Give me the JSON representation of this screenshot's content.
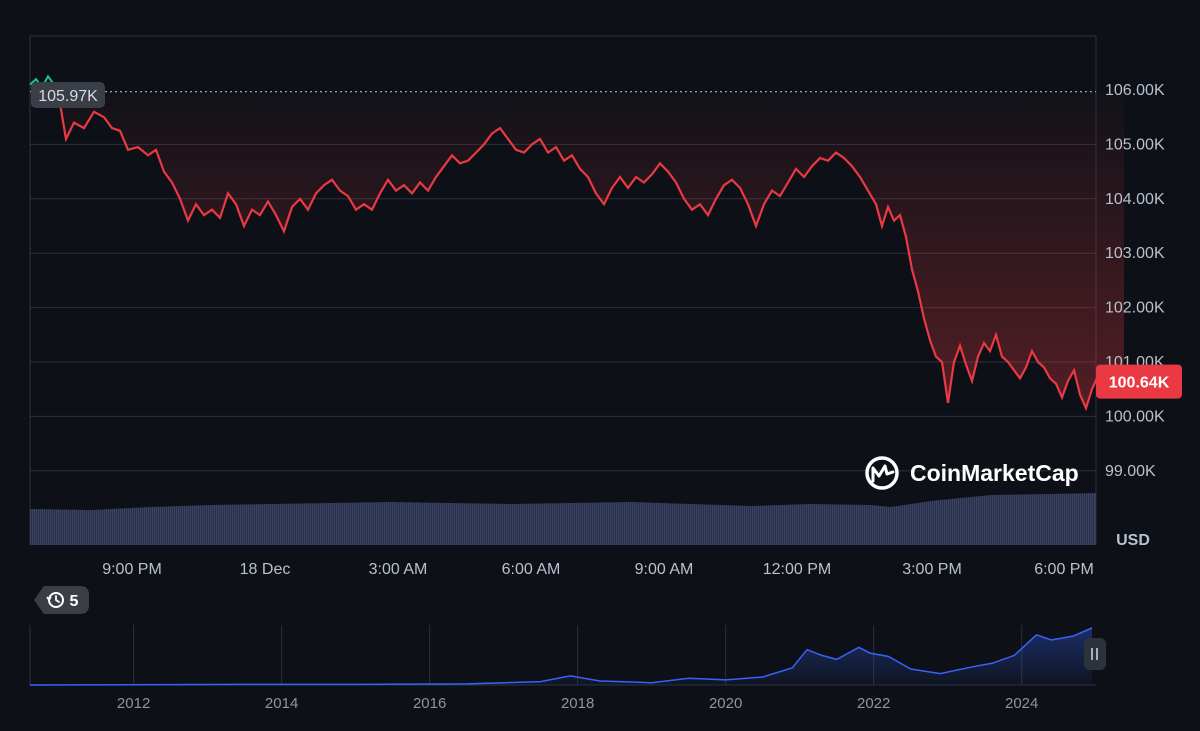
{
  "colors": {
    "background": "#0d1117",
    "grid": "#2a313c",
    "down_line": "#ea3943",
    "up_line": "#16c784",
    "volume": "#3a4465",
    "navigator_line": "#3861fb",
    "badge": "#ea3943",
    "open_badge": "#3a3f47"
  },
  "chart_data": [
    {
      "type": "line",
      "y_ticks": [
        "106.00K",
        "105.00K",
        "104.00K",
        "103.00K",
        "102.00K",
        "101.00K",
        "100.00K",
        "99.00K"
      ],
      "y_values": [
        106000,
        105000,
        104000,
        103000,
        102000,
        101000,
        100000,
        99000
      ],
      "ylim": [
        98500,
        107000
      ],
      "y_unit": "USD",
      "x_ticks": [
        "9:00 PM",
        "18 Dec",
        "3:00 AM",
        "6:00 AM",
        "9:00 AM",
        "12:00 PM",
        "3:00 PM",
        "6:00 PM"
      ],
      "open_price": 105970,
      "open_label": "105.97K",
      "current_price": 100640,
      "current_label": "100.64K",
      "grid": true,
      "series_up": [
        [
          0,
          106100
        ],
        [
          6,
          106200
        ],
        [
          12,
          106050
        ],
        [
          18,
          106250
        ],
        [
          24,
          106100
        ],
        [
          28,
          105970
        ]
      ],
      "series": [
        [
          28,
          105970
        ],
        [
          36,
          105100
        ],
        [
          44,
          105400
        ],
        [
          54,
          105300
        ],
        [
          64,
          105600
        ],
        [
          74,
          105500
        ],
        [
          82,
          105300
        ],
        [
          90,
          105250
        ],
        [
          98,
          104900
        ],
        [
          108,
          104950
        ],
        [
          118,
          104800
        ],
        [
          126,
          104900
        ],
        [
          134,
          104500
        ],
        [
          142,
          104300
        ],
        [
          150,
          104000
        ],
        [
          158,
          103600
        ],
        [
          166,
          103900
        ],
        [
          174,
          103700
        ],
        [
          182,
          103800
        ],
        [
          190,
          103650
        ],
        [
          198,
          104100
        ],
        [
          206,
          103900
        ],
        [
          214,
          103500
        ],
        [
          222,
          103800
        ],
        [
          230,
          103700
        ],
        [
          238,
          103950
        ],
        [
          246,
          103700
        ],
        [
          254,
          103400
        ],
        [
          262,
          103850
        ],
        [
          270,
          104000
        ],
        [
          278,
          103800
        ],
        [
          286,
          104100
        ],
        [
          294,
          104250
        ],
        [
          302,
          104350
        ],
        [
          310,
          104150
        ],
        [
          318,
          104050
        ],
        [
          326,
          103800
        ],
        [
          334,
          103900
        ],
        [
          342,
          103800
        ],
        [
          350,
          104100
        ],
        [
          358,
          104350
        ],
        [
          366,
          104150
        ],
        [
          374,
          104250
        ],
        [
          382,
          104100
        ],
        [
          390,
          104300
        ],
        [
          398,
          104150
        ],
        [
          406,
          104400
        ],
        [
          414,
          104600
        ],
        [
          422,
          104800
        ],
        [
          430,
          104650
        ],
        [
          438,
          104700
        ],
        [
          446,
          104850
        ],
        [
          454,
          105000
        ],
        [
          462,
          105200
        ],
        [
          470,
          105300
        ],
        [
          478,
          105100
        ],
        [
          486,
          104900
        ],
        [
          494,
          104850
        ],
        [
          502,
          105000
        ],
        [
          510,
          105100
        ],
        [
          518,
          104850
        ],
        [
          526,
          104950
        ],
        [
          534,
          104700
        ],
        [
          542,
          104800
        ],
        [
          550,
          104550
        ],
        [
          558,
          104400
        ],
        [
          566,
          104100
        ],
        [
          574,
          103900
        ],
        [
          582,
          104200
        ],
        [
          590,
          104400
        ],
        [
          598,
          104200
        ],
        [
          606,
          104400
        ],
        [
          614,
          104300
        ],
        [
          622,
          104450
        ],
        [
          630,
          104650
        ],
        [
          638,
          104500
        ],
        [
          646,
          104300
        ],
        [
          654,
          104000
        ],
        [
          662,
          103800
        ],
        [
          670,
          103900
        ],
        [
          678,
          103700
        ],
        [
          686,
          104000
        ],
        [
          694,
          104250
        ],
        [
          702,
          104350
        ],
        [
          710,
          104200
        ],
        [
          718,
          103900
        ],
        [
          726,
          103500
        ],
        [
          734,
          103900
        ],
        [
          742,
          104150
        ],
        [
          750,
          104050
        ],
        [
          758,
          104300
        ],
        [
          766,
          104550
        ],
        [
          774,
          104400
        ],
        [
          782,
          104600
        ],
        [
          790,
          104750
        ],
        [
          798,
          104700
        ],
        [
          806,
          104850
        ],
        [
          814,
          104750
        ],
        [
          822,
          104600
        ],
        [
          830,
          104400
        ],
        [
          838,
          104150
        ],
        [
          846,
          103900
        ],
        [
          852,
          103500
        ],
        [
          858,
          103850
        ],
        [
          864,
          103600
        ],
        [
          870,
          103700
        ],
        [
          876,
          103300
        ],
        [
          882,
          102700
        ],
        [
          888,
          102300
        ],
        [
          894,
          101800
        ],
        [
          900,
          101400
        ],
        [
          906,
          101100
        ],
        [
          912,
          101000
        ],
        [
          918,
          100250
        ],
        [
          924,
          101000
        ],
        [
          930,
          101300
        ],
        [
          936,
          100950
        ],
        [
          942,
          100650
        ],
        [
          948,
          101100
        ],
        [
          954,
          101350
        ],
        [
          960,
          101200
        ],
        [
          966,
          101500
        ],
        [
          972,
          101100
        ],
        [
          978,
          101000
        ],
        [
          984,
          100850
        ],
        [
          990,
          100700
        ],
        [
          996,
          100900
        ],
        [
          1002,
          101200
        ],
        [
          1008,
          101000
        ],
        [
          1014,
          100900
        ],
        [
          1020,
          100700
        ],
        [
          1026,
          100600
        ],
        [
          1032,
          100350
        ],
        [
          1038,
          100650
        ],
        [
          1044,
          100850
        ],
        [
          1050,
          100400
        ],
        [
          1056,
          100150
        ],
        [
          1062,
          100500
        ],
        [
          1068,
          100750
        ],
        [
          1074,
          100700
        ],
        [
          1080,
          100850
        ],
        [
          1086,
          100950
        ],
        [
          1094,
          100640
        ]
      ],
      "volume_profile": [
        [
          0,
          0.18
        ],
        [
          60,
          0.175
        ],
        [
          120,
          0.19
        ],
        [
          180,
          0.2
        ],
        [
          240,
          0.205
        ],
        [
          300,
          0.21
        ],
        [
          360,
          0.215
        ],
        [
          420,
          0.21
        ],
        [
          480,
          0.205
        ],
        [
          540,
          0.21
        ],
        [
          600,
          0.215
        ],
        [
          660,
          0.205
        ],
        [
          720,
          0.195
        ],
        [
          780,
          0.205
        ],
        [
          840,
          0.2
        ],
        [
          860,
          0.19
        ],
        [
          900,
          0.22
        ],
        [
          960,
          0.25
        ],
        [
          1020,
          0.255
        ],
        [
          1066,
          0.26
        ],
        [
          1094,
          0.28
        ]
      ]
    },
    {
      "type": "area",
      "x_ticks": [
        "2012",
        "2014",
        "2016",
        "2018",
        "2020",
        "2022",
        "2024"
      ],
      "x_tick_years": [
        2012,
        2014,
        2016,
        2018,
        2020,
        2022,
        2024
      ],
      "xlim": [
        2010.6,
        2024.95
      ],
      "series": [
        [
          2010.6,
          0.0
        ],
        [
          2013.5,
          0.01
        ],
        [
          2015.0,
          0.01
        ],
        [
          2016.5,
          0.02
        ],
        [
          2017.5,
          0.06
        ],
        [
          2017.9,
          0.16
        ],
        [
          2018.3,
          0.07
        ],
        [
          2019.0,
          0.04
        ],
        [
          2019.5,
          0.12
        ],
        [
          2020.0,
          0.09
        ],
        [
          2020.5,
          0.14
        ],
        [
          2020.9,
          0.3
        ],
        [
          2021.1,
          0.62
        ],
        [
          2021.3,
          0.52
        ],
        [
          2021.5,
          0.45
        ],
        [
          2021.8,
          0.66
        ],
        [
          2021.95,
          0.56
        ],
        [
          2022.2,
          0.5
        ],
        [
          2022.5,
          0.28
        ],
        [
          2022.9,
          0.2
        ],
        [
          2023.3,
          0.31
        ],
        [
          2023.6,
          0.38
        ],
        [
          2023.9,
          0.52
        ],
        [
          2024.2,
          0.88
        ],
        [
          2024.4,
          0.79
        ],
        [
          2024.7,
          0.86
        ],
        [
          2024.95,
          1.0
        ]
      ]
    }
  ],
  "brand": {
    "name": "CoinMarketCap",
    "icon": "coinmarketcap-logo-icon"
  },
  "history_badge": {
    "count": "5",
    "icon": "history-clock-icon"
  },
  "navigator": {
    "handle_icon": "drag-handle-icon"
  }
}
